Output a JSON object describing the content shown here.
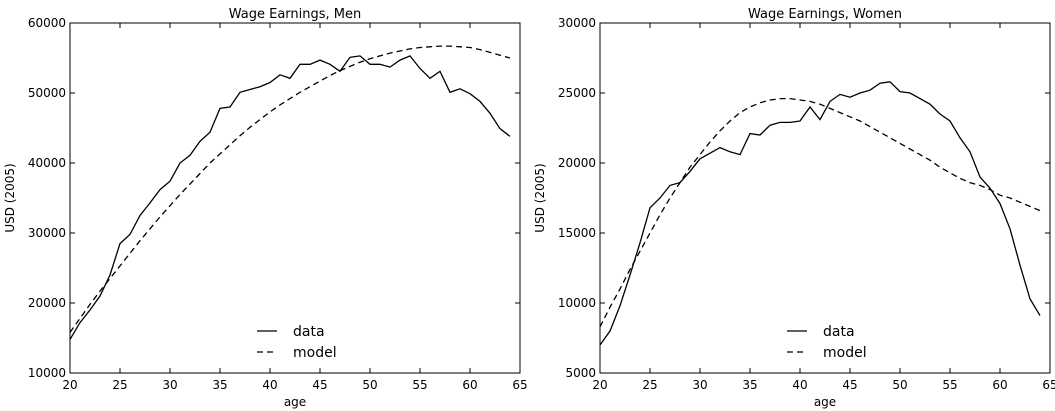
{
  "chart_data": [
    {
      "type": "line",
      "title": "Wage Earnings, Men",
      "xlabel": "age",
      "ylabel": "USD (2005)",
      "xlim": [
        20,
        65
      ],
      "ylim": [
        10000,
        60000
      ],
      "xticks": [
        20,
        25,
        30,
        35,
        40,
        45,
        50,
        55,
        60,
        65
      ],
      "yticks": [
        10000,
        20000,
        30000,
        40000,
        50000,
        60000
      ],
      "grid": false,
      "legend_position": "bottom-center",
      "series": [
        {
          "name": "data",
          "style": "solid",
          "x": [
            20,
            21,
            22,
            23,
            24,
            25,
            26,
            27,
            28,
            29,
            30,
            31,
            32,
            33,
            34,
            35,
            36,
            37,
            38,
            39,
            40,
            41,
            42,
            43,
            44,
            45,
            46,
            47,
            48,
            49,
            50,
            51,
            52,
            53,
            54,
            55,
            56,
            57,
            58,
            59,
            60,
            61,
            62,
            63,
            64
          ],
          "y": [
            14800,
            17200,
            19000,
            21000,
            24000,
            28500,
            29800,
            32500,
            34300,
            36200,
            37400,
            40000,
            41100,
            43100,
            44400,
            47800,
            48000,
            50100,
            50500,
            50900,
            51500,
            52600,
            52100,
            54100,
            54100,
            54700,
            54100,
            53100,
            55100,
            55300,
            54100,
            54100,
            53700,
            54700,
            55300,
            53500,
            52100,
            53100,
            50100,
            50600,
            49900,
            48800,
            47100,
            44900,
            43800
          ]
        },
        {
          "name": "model",
          "style": "dashed",
          "x": [
            20,
            21,
            22,
            23,
            24,
            25,
            26,
            27,
            28,
            29,
            30,
            31,
            32,
            33,
            34,
            35,
            36,
            37,
            38,
            39,
            40,
            41,
            42,
            43,
            44,
            45,
            46,
            47,
            48,
            49,
            50,
            51,
            52,
            53,
            54,
            55,
            56,
            57,
            58,
            59,
            60,
            61,
            62,
            63,
            64
          ],
          "y": [
            15800,
            17800,
            19800,
            21700,
            23500,
            25300,
            27100,
            28900,
            30600,
            32300,
            33900,
            35500,
            37000,
            38500,
            40000,
            41300,
            42600,
            43900,
            45100,
            46200,
            47300,
            48300,
            49200,
            50100,
            50900,
            51700,
            52500,
            53200,
            53800,
            54400,
            54900,
            55300,
            55700,
            56000,
            56300,
            56500,
            56600,
            56700,
            56700,
            56600,
            56500,
            56200,
            55800,
            55400,
            55000
          ]
        }
      ]
    },
    {
      "type": "line",
      "title": "Wage Earnings, Women",
      "xlabel": "age",
      "ylabel": "USD (2005)",
      "xlim": [
        20,
        65
      ],
      "ylim": [
        5000,
        30000
      ],
      "xticks": [
        20,
        25,
        30,
        35,
        40,
        45,
        50,
        55,
        60,
        65
      ],
      "yticks": [
        5000,
        10000,
        15000,
        20000,
        25000,
        30000
      ],
      "grid": false,
      "legend_position": "bottom-center",
      "series": [
        {
          "name": "data",
          "style": "solid",
          "x": [
            20,
            21,
            22,
            23,
            24,
            25,
            26,
            27,
            28,
            29,
            30,
            31,
            32,
            33,
            34,
            35,
            36,
            37,
            38,
            39,
            40,
            41,
            42,
            43,
            44,
            45,
            46,
            47,
            48,
            49,
            50,
            51,
            52,
            53,
            54,
            55,
            56,
            57,
            58,
            59,
            60,
            61,
            62,
            63,
            64
          ],
          "y": [
            7000,
            8000,
            9800,
            12000,
            14300,
            16800,
            17500,
            18400,
            18600,
            19400,
            20300,
            20700,
            21100,
            20800,
            20600,
            22100,
            22000,
            22700,
            22900,
            22900,
            23000,
            24000,
            23100,
            24400,
            24900,
            24700,
            25000,
            25200,
            25700,
            25800,
            25100,
            25000,
            24600,
            24200,
            23500,
            23000,
            21800,
            20800,
            19000,
            18200,
            17100,
            15300,
            12700,
            10300,
            9100
          ]
        },
        {
          "name": "model",
          "style": "dashed",
          "x": [
            20,
            21,
            22,
            23,
            24,
            25,
            26,
            27,
            28,
            29,
            30,
            31,
            32,
            33,
            34,
            35,
            36,
            37,
            38,
            39,
            40,
            41,
            42,
            43,
            44,
            45,
            46,
            47,
            48,
            49,
            50,
            51,
            52,
            53,
            54,
            55,
            56,
            57,
            58,
            59,
            60,
            61,
            62,
            63,
            64
          ],
          "y": [
            8300,
            9700,
            11000,
            12400,
            13700,
            15000,
            16300,
            17500,
            18600,
            19700,
            20600,
            21500,
            22300,
            23000,
            23600,
            24000,
            24300,
            24500,
            24600,
            24600,
            24500,
            24400,
            24200,
            23900,
            23600,
            23300,
            23000,
            22600,
            22200,
            21800,
            21400,
            21000,
            20600,
            20200,
            19700,
            19300,
            18900,
            18600,
            18400,
            18100,
            17700,
            17500,
            17200,
            16900,
            16600
          ]
        }
      ]
    }
  ]
}
